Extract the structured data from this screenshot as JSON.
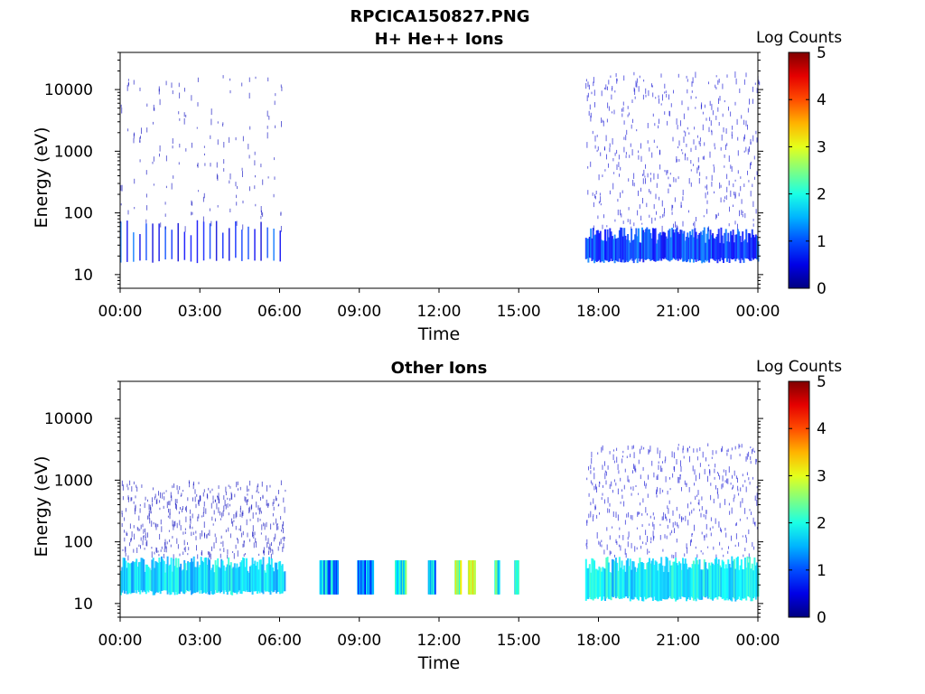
{
  "figure_title": "RPCICA150827.PNG",
  "chart_data": [
    {
      "type": "heatmap",
      "title": "H+ He++ Ions",
      "xlabel": "Time",
      "ylabel": "Energy (eV)",
      "y_scale": "log",
      "ylim": [
        6,
        40000
      ],
      "x_ticks": [
        "00:00",
        "03:00",
        "06:00",
        "09:00",
        "12:00",
        "15:00",
        "18:00",
        "21:00",
        "00:00"
      ],
      "y_ticks": [
        "10",
        "100",
        "1000",
        "10000"
      ],
      "colorbar": {
        "label": "Log Counts",
        "ticks": [
          "0",
          "1",
          "2",
          "3",
          "4",
          "5"
        ],
        "range": [
          0,
          5
        ]
      },
      "segments": [
        {
          "t_start": "00:00",
          "t_end": "06:10",
          "low_band_eV": [
            17,
            60
          ],
          "low_level": 0.8,
          "sparse_max_eV": 20000,
          "sparse_level": 0.3,
          "pattern": "periodic"
        },
        {
          "t_start": "17:30",
          "t_end": "24:00",
          "low_band_eV": [
            17,
            45
          ],
          "low_level": 0.9,
          "sparse_max_eV": 20000,
          "sparse_level": 0.4,
          "pattern": "dense"
        }
      ]
    },
    {
      "type": "heatmap",
      "title": "Other Ions",
      "xlabel": "Time",
      "ylabel": "Energy (eV)",
      "y_scale": "log",
      "ylim": [
        6,
        40000
      ],
      "x_ticks": [
        "00:00",
        "03:00",
        "06:00",
        "09:00",
        "12:00",
        "15:00",
        "18:00",
        "21:00",
        "00:00"
      ],
      "y_ticks": [
        "10",
        "100",
        "1000",
        "10000"
      ],
      "colorbar": {
        "label": "Log Counts",
        "ticks": [
          "0",
          "1",
          "2",
          "3",
          "4",
          "5"
        ],
        "range": [
          0,
          5
        ]
      },
      "segments": [
        {
          "t_start": "00:00",
          "t_end": "06:10",
          "low_band_eV": [
            15,
            45
          ],
          "low_level": 1.7,
          "sparse_max_eV": 1000,
          "sparse_level": 0.3,
          "pattern": "dense"
        },
        {
          "t_start": "17:30",
          "t_end": "24:00",
          "low_band_eV": [
            12,
            45
          ],
          "low_level": 1.8,
          "sparse_max_eV": 4000,
          "sparse_level": 0.4,
          "pattern": "dense"
        }
      ],
      "bursts": [
        {
          "t_start": "07:30",
          "t_end": "08:10",
          "eV": [
            14,
            50
          ],
          "level": 1.5
        },
        {
          "t_start": "08:55",
          "t_end": "09:30",
          "eV": [
            14,
            50
          ],
          "level": 1.3
        },
        {
          "t_start": "10:20",
          "t_end": "10:45",
          "eV": [
            14,
            50
          ],
          "level": 2.0
        },
        {
          "t_start": "11:35",
          "t_end": "11:50",
          "eV": [
            14,
            50
          ],
          "level": 1.6
        },
        {
          "t_start": "12:35",
          "t_end": "12:48",
          "eV": [
            14,
            50
          ],
          "level": 2.6
        },
        {
          "t_start": "13:05",
          "t_end": "13:20",
          "eV": [
            14,
            50
          ],
          "level": 2.8
        },
        {
          "t_start": "14:05",
          "t_end": "14:15",
          "eV": [
            14,
            50
          ],
          "level": 2.0
        },
        {
          "t_start": "14:50",
          "t_end": "14:58",
          "eV": [
            14,
            50
          ],
          "level": 2.0
        }
      ]
    }
  ]
}
